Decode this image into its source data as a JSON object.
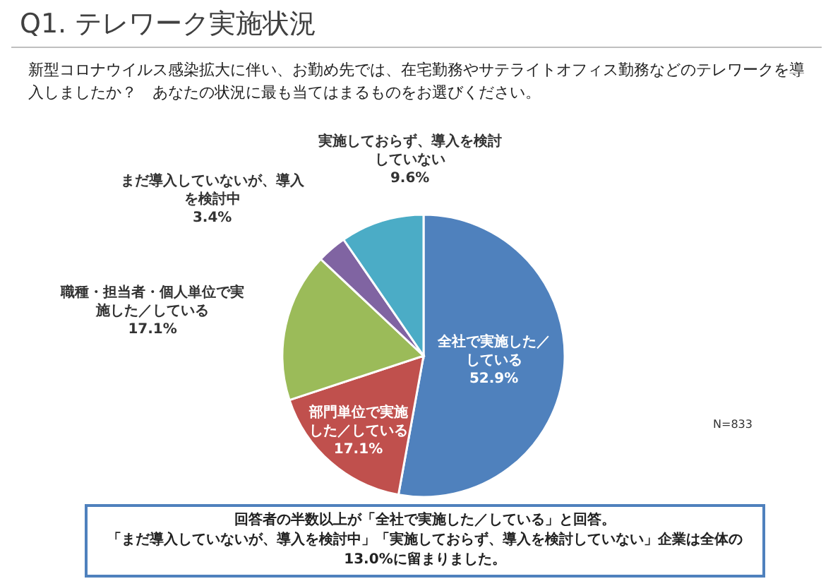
{
  "chart_data": {
    "type": "pie",
    "title": "Q1. テレワーク実施状況",
    "subtitle": "新型コロナウイルス感染拡大に伴い、お勤め先では、在宅勤務やサテライトオフィス勤務などのテレワークを導入しましたか？　あなたの状況に最も当てはまるものをお選びください。",
    "categories": [
      "全社で実施した／している",
      "部門単位で実施した／している",
      "職種・担当者・個人単位で実施した／している",
      "まだ導入していないが、導入を検討中",
      "実施しておらず、導入を検討していない"
    ],
    "values": [
      52.9,
      17.1,
      17.1,
      3.4,
      9.6
    ],
    "value_labels": [
      "52.9%",
      "17.1%",
      "17.1%",
      "3.4%",
      "9.6%"
    ],
    "colors": [
      "#4f81bd",
      "#c0504d",
      "#9bbb59",
      "#8064a2",
      "#4bacc6"
    ],
    "annotations": [
      "N=833",
      "回答者の半数以上が「全社で実施した／している」と回答。",
      "「まだ導入していないが、導入を検討中」「実施しておらず、導入を検討していない」企業は全体の",
      "13.0%に留まりました。"
    ]
  }
}
